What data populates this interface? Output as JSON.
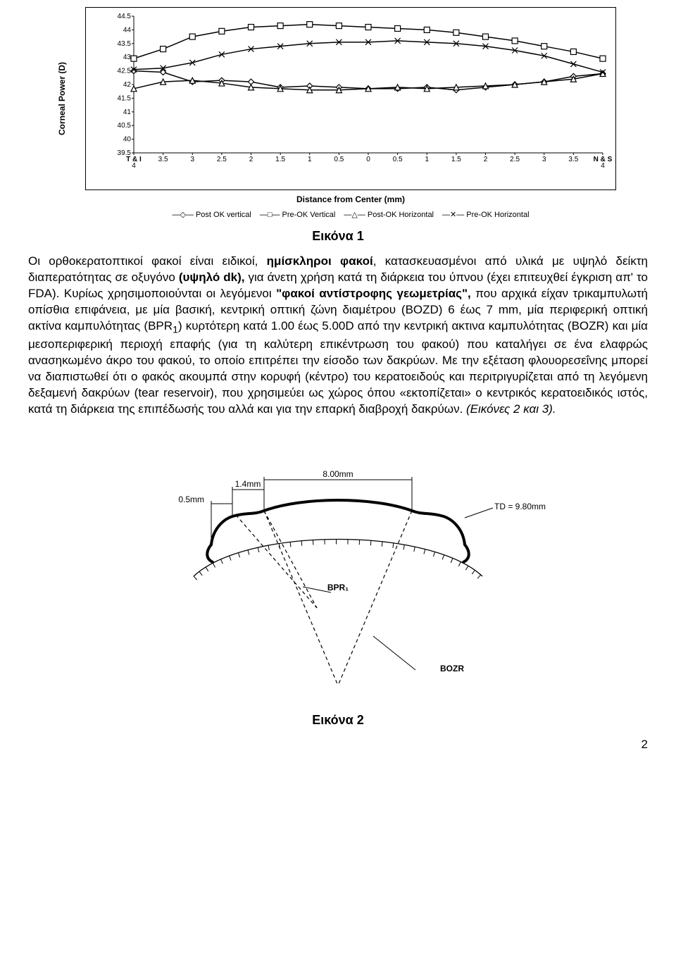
{
  "chart": {
    "type": "line",
    "y_label": "Corneal Power (D)",
    "x_label": "Distance from Center (mm)",
    "ylim": [
      39.5,
      44.5
    ],
    "ytick_step": 0.5,
    "x_categories": [
      "T & I\n4",
      "3.5",
      "3",
      "2.5",
      "2",
      "1.5",
      "1",
      "0.5",
      "0",
      "0.5",
      "1",
      "1.5",
      "2",
      "2.5",
      "3",
      "3.5",
      "N & S\n4"
    ],
    "background_color": "#ffffff",
    "border_color": "#000000",
    "grid": false,
    "tick_fontsize": 10,
    "label_fontsize": 12,
    "line_color": "#000000",
    "line_width": 1.5,
    "marker_size": 8,
    "series": [
      {
        "name": "Post OK vertical",
        "marker": "diamond",
        "values": [
          42.5,
          42.45,
          42.1,
          42.15,
          42.1,
          41.9,
          41.95,
          41.9,
          41.85,
          41.85,
          41.9,
          41.8,
          41.9,
          42.0,
          42.1,
          42.3,
          42.4
        ]
      },
      {
        "name": "Pre-OK Vertical",
        "marker": "square",
        "values": [
          42.95,
          43.3,
          43.75,
          43.95,
          44.1,
          44.15,
          44.2,
          44.15,
          44.1,
          44.05,
          44.0,
          43.9,
          43.75,
          43.6,
          43.4,
          43.2,
          42.95
        ]
      },
      {
        "name": "Post-OK Horizontal",
        "marker": "triangle",
        "values": [
          41.85,
          42.1,
          42.15,
          42.05,
          41.9,
          41.85,
          41.8,
          41.8,
          41.85,
          41.9,
          41.85,
          41.9,
          41.95,
          42.0,
          42.1,
          42.2,
          42.4
        ]
      },
      {
        "name": "Pre-OK Horizontal",
        "marker": "x",
        "values": [
          42.55,
          42.6,
          42.8,
          43.1,
          43.3,
          43.4,
          43.5,
          43.55,
          43.55,
          43.6,
          43.55,
          43.5,
          43.4,
          43.25,
          43.05,
          42.75,
          42.45
        ]
      }
    ],
    "legend": [
      "Post OK vertical",
      "Pre-OK Vertical",
      "Post-OK Horizontal",
      "Pre-OK Horizontal"
    ],
    "legend_markers": [
      "◇",
      "□",
      "△",
      "✕"
    ]
  },
  "caption1": "Εικόνα 1",
  "body": "Οι ορθοκερατoπτικοί φακοί είναι ειδικοί, <b>ημίσκληροι φακοί</b>, κατασκευασμένοι από υλικά με υψηλό δείκτη διαπερατότητας σε οξυγόνο <b>(υψηλό dk),</b> για άνετη χρήση κατά τη διάρκεια του ύπνου (έχει επιτευχθεί έγκριση απ' το FDA). Κυρίως χρησιμοποιούνται οι λεγόμενοι <b>\"φακοί αντίστροφης γεωμετρίας\",</b> που αρχικά είχαν τρικαμπυλωτή οπίσθια επιφάνεια, με μία βασική, κεντρική οπτική ζώνη διαμέτρου (BOZD) 6 έως 7 mm, μία περιφερική οπτική ακτίνα καμπυλότητας (BPR<sub>1</sub>) κυρτότερη κατά 1.00 έως 5.00D από την κεντρική ακτινα καμπυλότητας (BOZR) και μία μεσοπεριφερική περιοχή επαφής (για τη καλύτερη επικέντρωση του φακού) που καταλήγει σε ένα ελαφρώς ανασηκωμένο άκρο του φακού, το οποίο επιτρέπει την είσοδο των δακρύων. Με την εξέταση φλουορεσεΐνης μπορεί να διαπιστωθεί ότι ο φακός ακουμπά στην κορυφή (κέντρο) του κερατοειδούς και περιτριγυρίζεται από τη λεγόμενη δεξαμενή δακρύων (tear reservoir), που χρησιμεύει ως χώρος όπου «εκτοπίζεται» ο κεντρικός κερατοειδικός ιστός, κατά τη διάρκεια της επιπέδωσής του αλλά και για την επαρκή διαβροχή δακρύων. <i>(Εικόνες 2 και 3).</i>",
  "diagram": {
    "type": "infographic",
    "labels": {
      "width_8mm": "8.00mm",
      "width_14mm": "1.4mm",
      "width_05mm": "0.5mm",
      "td": "TD = 9.80mm",
      "bpr": "BPR₁",
      "bozr": "BOZR"
    },
    "line_color": "#000000",
    "lens_stroke_width": 4,
    "dashed_stroke_width": 1.2,
    "text_fontsize": 12,
    "background_color": "#ffffff"
  },
  "caption2": "Εικόνα 2",
  "page_number": "2"
}
